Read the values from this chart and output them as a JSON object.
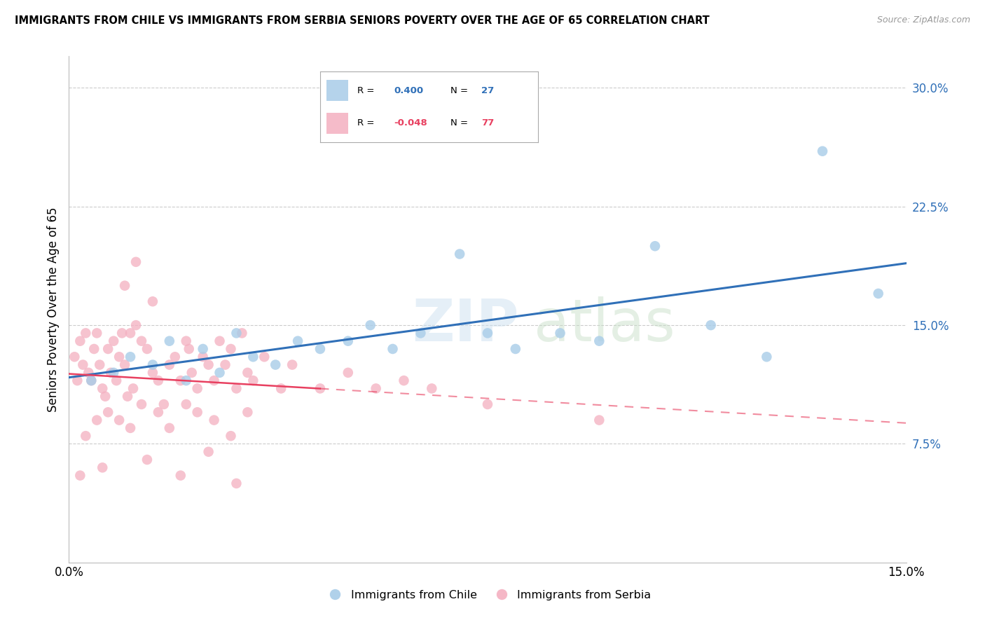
{
  "title": "IMMIGRANTS FROM CHILE VS IMMIGRANTS FROM SERBIA SENIORS POVERTY OVER THE AGE OF 65 CORRELATION CHART",
  "source": "Source: ZipAtlas.com",
  "ylabel": "Seniors Poverty Over the Age of 65",
  "xlim": [
    0.0,
    15.0
  ],
  "ylim": [
    0.0,
    32.0
  ],
  "yticks": [
    7.5,
    15.0,
    22.5,
    30.0
  ],
  "ytick_labels": [
    "7.5%",
    "15.0%",
    "22.5%",
    "30.0%"
  ],
  "xtick_labels": [
    "0.0%",
    "15.0%"
  ],
  "chile_R": 0.4,
  "chile_N": 27,
  "serbia_R": -0.048,
  "serbia_N": 77,
  "chile_color": "#a8cce8",
  "serbia_color": "#f4afc0",
  "chile_line_color": "#3070b8",
  "serbia_line_color": "#e84060",
  "chile_scatter_x": [
    0.4,
    0.8,
    1.1,
    1.5,
    1.8,
    2.1,
    2.4,
    2.7,
    3.0,
    3.3,
    3.7,
    4.1,
    4.5,
    5.0,
    5.4,
    5.8,
    6.3,
    7.0,
    7.5,
    8.0,
    8.8,
    9.5,
    10.5,
    11.5,
    12.5,
    13.5,
    14.5
  ],
  "chile_scatter_y": [
    11.5,
    12.0,
    13.0,
    12.5,
    14.0,
    11.5,
    13.5,
    12.0,
    14.5,
    13.0,
    12.5,
    14.0,
    13.5,
    14.0,
    15.0,
    13.5,
    14.5,
    19.5,
    14.5,
    13.5,
    14.5,
    14.0,
    20.0,
    15.0,
    13.0,
    26.0,
    17.0
  ],
  "serbia_scatter_x": [
    0.1,
    0.15,
    0.2,
    0.25,
    0.3,
    0.35,
    0.4,
    0.45,
    0.5,
    0.55,
    0.6,
    0.65,
    0.7,
    0.75,
    0.8,
    0.85,
    0.9,
    0.95,
    1.0,
    1.05,
    1.1,
    1.15,
    1.2,
    1.3,
    1.4,
    1.5,
    1.6,
    1.7,
    1.8,
    1.9,
    2.0,
    2.1,
    2.15,
    2.2,
    2.3,
    2.4,
    2.5,
    2.6,
    2.7,
    2.8,
    2.9,
    3.0,
    3.1,
    3.2,
    3.3,
    3.5,
    3.8,
    4.0,
    4.5,
    5.0,
    5.5,
    6.0,
    6.5,
    7.5,
    9.5,
    1.0,
    1.2,
    1.5,
    2.0,
    2.5,
    3.0,
    0.3,
    0.5,
    0.7,
    0.9,
    1.1,
    1.3,
    1.6,
    1.8,
    2.1,
    2.3,
    2.6,
    2.9,
    3.2,
    0.2,
    0.6,
    1.4
  ],
  "serbia_scatter_y": [
    13.0,
    11.5,
    14.0,
    12.5,
    14.5,
    12.0,
    11.5,
    13.5,
    14.5,
    12.5,
    11.0,
    10.5,
    13.5,
    12.0,
    14.0,
    11.5,
    13.0,
    14.5,
    12.5,
    10.5,
    14.5,
    11.0,
    15.0,
    14.0,
    13.5,
    12.0,
    11.5,
    10.0,
    12.5,
    13.0,
    11.5,
    14.0,
    13.5,
    12.0,
    11.0,
    13.0,
    12.5,
    11.5,
    14.0,
    12.5,
    13.5,
    11.0,
    14.5,
    12.0,
    11.5,
    13.0,
    11.0,
    12.5,
    11.0,
    12.0,
    11.0,
    11.5,
    11.0,
    10.0,
    9.0,
    17.5,
    19.0,
    16.5,
    5.5,
    7.0,
    5.0,
    8.0,
    9.0,
    9.5,
    9.0,
    8.5,
    10.0,
    9.5,
    8.5,
    10.0,
    9.5,
    9.0,
    8.0,
    9.5,
    5.5,
    6.0,
    6.5
  ]
}
